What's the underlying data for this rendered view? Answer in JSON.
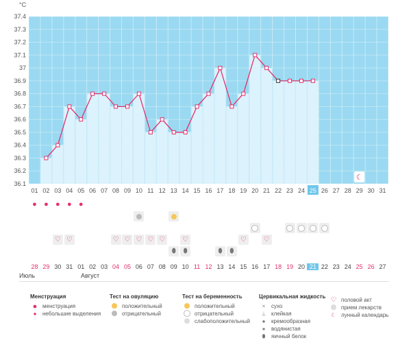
{
  "chart_data": {
    "type": "area",
    "ylabel": "°C",
    "ylim": [
      36.1,
      37.4
    ],
    "y_ticks": [
      "37.4",
      "37.3",
      "37.2",
      "37.1",
      "37",
      "36.9",
      "36.8",
      "36.7",
      "36.6",
      "36.5",
      "36.4",
      "36.3",
      "36.2",
      "36.1"
    ],
    "x_ticks": [
      "01",
      "02",
      "03",
      "04",
      "05",
      "06",
      "07",
      "08",
      "09",
      "10",
      "11",
      "12",
      "13",
      "14",
      "15",
      "16",
      "17",
      "18",
      "19",
      "20",
      "21",
      "22",
      "23",
      "24",
      "25",
      "26",
      "27",
      "28",
      "29",
      "30",
      "31"
    ],
    "x_ticks_red": [],
    "selected_day": "25",
    "series": [
      {
        "values": [
          null,
          36.3,
          36.4,
          36.7,
          36.6,
          36.8,
          36.8,
          36.7,
          36.7,
          36.8,
          36.5,
          36.6,
          36.5,
          36.5,
          36.7,
          36.8,
          37.0,
          36.7,
          36.8,
          37.1,
          37.0,
          36.9,
          36.9,
          36.9,
          36.9,
          null,
          null,
          null,
          null,
          null,
          null
        ]
      }
    ],
    "missing_day_marker": "22",
    "moon_day": "29"
  },
  "colors": {
    "sky": "#9ad9f1",
    "bar": "#dcf2fc",
    "line": "#e1306c",
    "accent": "#6ec6ea"
  },
  "rows": {
    "menstruation": {
      "icon": "drop",
      "days": [
        "01",
        "02",
        "03",
        "04",
        "05"
      ]
    },
    "ovulation": {
      "icon": "sun-icon",
      "days": [
        "10",
        "13"
      ]
    },
    "pregnancy": {
      "icon": "circle",
      "days": [
        "20",
        "23",
        "24",
        "25",
        "26"
      ]
    },
    "sex": {
      "icon": "heart",
      "days": [
        "03",
        "04",
        "08",
        "09",
        "10",
        "11",
        "12",
        "14",
        "19",
        "21"
      ]
    },
    "fluid": {
      "icon": "egg",
      "days": [
        "13",
        "14",
        "17",
        "18"
      ]
    }
  },
  "bottom_days": [
    "28",
    "29",
    "30",
    "31",
    "01",
    "02",
    "03",
    "04",
    "05",
    "06",
    "07",
    "08",
    "09",
    "10",
    "11",
    "12",
    "13",
    "14",
    "15",
    "16",
    "17",
    "18",
    "19",
    "20",
    "21",
    "22",
    "23",
    "24",
    "25",
    "26",
    "27"
  ],
  "bottom_red": [
    "28",
    "29",
    "04",
    "05",
    "11",
    "12",
    "18",
    "19",
    "25",
    "26"
  ],
  "bottom_selected": "21",
  "months": {
    "prev": "Июль",
    "next": "Август"
  },
  "legend": {
    "menstruation": {
      "title": "Менструация",
      "items": [
        "менструация",
        "небольшие выделения"
      ]
    },
    "ovulation": {
      "title": "Тест на овуляцию",
      "items": [
        "положительный",
        "отрицательный"
      ]
    },
    "pregnancy": {
      "title": "Тест на беременность",
      "items": [
        "положительный",
        "отрицательный",
        "слабоположительный"
      ]
    },
    "fluid": {
      "title": "Цервикальная жидкость",
      "items": [
        "сухо",
        "клейкая",
        "кремообразная",
        "водянистая",
        "яичный белок"
      ]
    },
    "other": {
      "items": [
        "половой акт",
        "прием лекарств",
        "лунный календарь"
      ]
    }
  }
}
